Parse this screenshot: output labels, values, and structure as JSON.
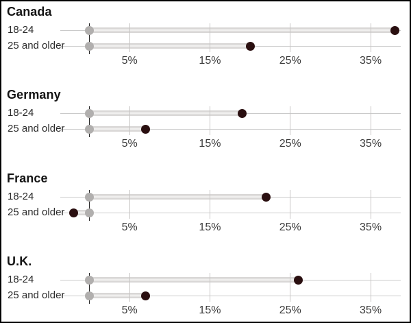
{
  "chart_data": {
    "type": "scatter",
    "subtype": "dumbbell_small_multiples",
    "title": "",
    "xlabel": "",
    "ylabel": "",
    "axis": {
      "ticks": [
        {
          "value": 5,
          "label": "5%"
        },
        {
          "value": 15,
          "label": "15%"
        },
        {
          "value": 25,
          "label": "25%"
        },
        {
          "value": 35,
          "label": "35%"
        }
      ],
      "xlim": [
        -3.6,
        38.7
      ],
      "zero_axis_line": true,
      "grid": true,
      "legend": "none"
    },
    "panels": [
      {
        "title": "Canada",
        "rows": [
          {
            "label": "18-24",
            "gray_dot_value": 0,
            "dark_dot_value": 38
          },
          {
            "label": "25 and older",
            "gray_dot_value": 0,
            "dark_dot_value": 20
          }
        ]
      },
      {
        "title": "Germany",
        "rows": [
          {
            "label": "18-24",
            "gray_dot_value": 0,
            "dark_dot_value": 19
          },
          {
            "label": "25 and older",
            "gray_dot_value": 0,
            "dark_dot_value": 7
          }
        ]
      },
      {
        "title": "France",
        "rows": [
          {
            "label": "18-24",
            "gray_dot_value": 0,
            "dark_dot_value": 22
          },
          {
            "label": "25 and older",
            "gray_dot_value": 0,
            "dark_dot_value": -2
          }
        ]
      },
      {
        "title": "U.K.",
        "rows": [
          {
            "label": "18-24",
            "gray_dot_value": 0,
            "dark_dot_value": 26
          },
          {
            "label": "25 and older",
            "gray_dot_value": 0,
            "dark_dot_value": 7
          }
        ]
      }
    ],
    "colors": {
      "dark_dot": "#2a0f10",
      "gray_dot": "#b1afae",
      "band": "#e1dfde",
      "track": "#cacaca",
      "gridline": "#c6c4c3",
      "zero_line": "#262626",
      "text": "#141414"
    }
  }
}
